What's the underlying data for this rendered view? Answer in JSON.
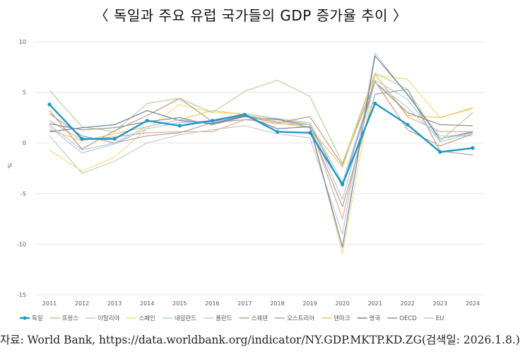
{
  "chart_data": {
    "type": "line",
    "title": "〈 독일과 주요 유럽 국가들의 GDP 증가율 추이 〉",
    "ylabel": "%",
    "xlabel": "",
    "ylim": [
      -15,
      10
    ],
    "yticks": [
      10,
      5,
      0,
      -5,
      -10,
      -15
    ],
    "categories": [
      "2011",
      "2012",
      "2013",
      "2014",
      "2015",
      "2016",
      "2017",
      "2018",
      "2019",
      "2020",
      "2021",
      "2022",
      "2023",
      "2024"
    ],
    "grid": true,
    "legend": "bottom",
    "series": [
      {
        "name": "독일",
        "color": "#2196c8",
        "highlight": true,
        "values": [
          3.8,
          0.4,
          0.4,
          2.2,
          1.7,
          2.2,
          2.8,
          1.1,
          1.0,
          -4.1,
          3.9,
          1.8,
          -0.9,
          -0.5
        ]
      },
      {
        "name": "프랑스",
        "color": "#e5ab8c",
        "values": [
          2.2,
          0.3,
          0.6,
          1.0,
          1.1,
          1.1,
          2.3,
          1.9,
          1.8,
          -7.5,
          6.8,
          2.6,
          1.1,
          1.1
        ]
      },
      {
        "name": "이탈리아",
        "color": "#c9c9c9",
        "values": [
          0.7,
          -3.0,
          -1.8,
          0.0,
          0.8,
          1.3,
          1.7,
          0.9,
          0.5,
          -9.0,
          8.9,
          4.7,
          0.7,
          0.7
        ]
      },
      {
        "name": "스페인",
        "color": "#f2df7a",
        "values": [
          -0.7,
          -2.8,
          -1.4,
          1.4,
          3.8,
          3.0,
          2.9,
          2.3,
          2.0,
          -10.9,
          6.7,
          6.3,
          2.5,
          3.5
        ]
      },
      {
        "name": "네덜란드",
        "color": "#a9cfe0",
        "values": [
          1.6,
          -1.0,
          -0.1,
          1.4,
          2.0,
          2.2,
          2.9,
          2.4,
          2.0,
          -3.9,
          6.2,
          4.3,
          0.1,
          1.0
        ]
      },
      {
        "name": "폴란드",
        "color": "#b5d49a",
        "values": [
          5.2,
          1.6,
          1.1,
          3.9,
          4.4,
          3.0,
          5.1,
          6.2,
          4.6,
          -2.0,
          6.9,
          5.3,
          0.2,
          3.0
        ]
      },
      {
        "name": "스웨덴",
        "color": "#c79779",
        "values": [
          3.2,
          -0.6,
          1.2,
          2.7,
          4.4,
          2.1,
          2.6,
          2.0,
          2.6,
          -2.2,
          6.1,
          1.3,
          -0.3,
          0.9
        ]
      },
      {
        "name": "오스트리아",
        "color": "#a3a3a3",
        "values": [
          2.9,
          0.7,
          0.0,
          0.7,
          1.0,
          2.0,
          2.3,
          2.4,
          1.5,
          -6.3,
          4.8,
          5.3,
          -0.8,
          -1.2
        ]
      },
      {
        "name": "덴마크",
        "color": "#e7c56a",
        "values": [
          1.3,
          0.2,
          0.9,
          1.6,
          2.3,
          3.2,
          2.8,
          2.0,
          1.5,
          -2.4,
          6.8,
          2.7,
          2.5,
          3.4
        ]
      },
      {
        "name": "영국",
        "color": "#5f7fa8",
        "values": [
          1.1,
          1.5,
          1.8,
          3.2,
          2.2,
          1.9,
          2.7,
          1.4,
          1.6,
          -10.3,
          8.6,
          4.8,
          0.4,
          1.1
        ]
      },
      {
        "name": "OECD",
        "color": "#8e8e8e",
        "values": [
          1.9,
          1.3,
          1.5,
          2.1,
          2.5,
          1.8,
          2.6,
          2.3,
          1.8,
          -4.3,
          6.0,
          3.0,
          1.8,
          1.7
        ]
      },
      {
        "name": "EU",
        "color": "#bcc8d6",
        "values": [
          1.8,
          -0.7,
          0.0,
          1.6,
          2.3,
          2.0,
          2.8,
          2.1,
          1.8,
          -5.6,
          6.0,
          3.5,
          0.4,
          1.0
        ]
      }
    ]
  },
  "source": "자료: World Bank, https://data.worldbank.org/indicator/NY.GDP.MKTP.KD.ZG(검색일: 2026.1.8.)"
}
